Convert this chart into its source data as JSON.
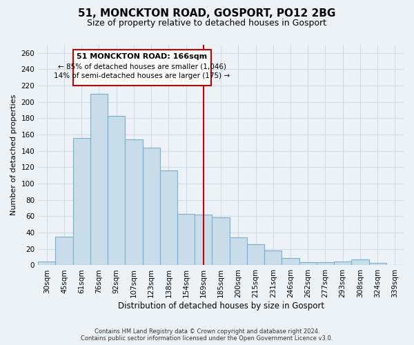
{
  "title": "51, MONCKTON ROAD, GOSPORT, PO12 2BG",
  "subtitle": "Size of property relative to detached houses in Gosport",
  "xlabel": "Distribution of detached houses by size in Gosport",
  "ylabel": "Number of detached properties",
  "bar_labels": [
    "30sqm",
    "45sqm",
    "61sqm",
    "76sqm",
    "92sqm",
    "107sqm",
    "123sqm",
    "138sqm",
    "154sqm",
    "169sqm",
    "185sqm",
    "200sqm",
    "215sqm",
    "231sqm",
    "246sqm",
    "262sqm",
    "277sqm",
    "293sqm",
    "308sqm",
    "324sqm",
    "339sqm"
  ],
  "bar_values": [
    5,
    35,
    156,
    210,
    183,
    154,
    144,
    116,
    63,
    62,
    59,
    34,
    26,
    18,
    9,
    4,
    4,
    5,
    7,
    3,
    0
  ],
  "bar_color": "#c8dcea",
  "bar_edge_color": "#7ab0cc",
  "property_line_x": 9,
  "property_line_color": "#cc0000",
  "annotation_title": "51 MONCKTON ROAD: 166sqm",
  "annotation_line1": "← 85% of detached houses are smaller (1,046)",
  "annotation_line2": "14% of semi-detached houses are larger (175) →",
  "annotation_box_color": "#ffffff",
  "annotation_box_edge": "#cc0000",
  "ylim": [
    0,
    270
  ],
  "yticks": [
    0,
    20,
    40,
    60,
    80,
    100,
    120,
    140,
    160,
    180,
    200,
    220,
    240,
    260
  ],
  "footer_line1": "Contains HM Land Registry data © Crown copyright and database right 2024.",
  "footer_line2": "Contains public sector information licensed under the Open Government Licence v3.0.",
  "background_color": "#edf2f7",
  "grid_color": "#d0dce8",
  "plot_bg_color": "#edf2f7"
}
